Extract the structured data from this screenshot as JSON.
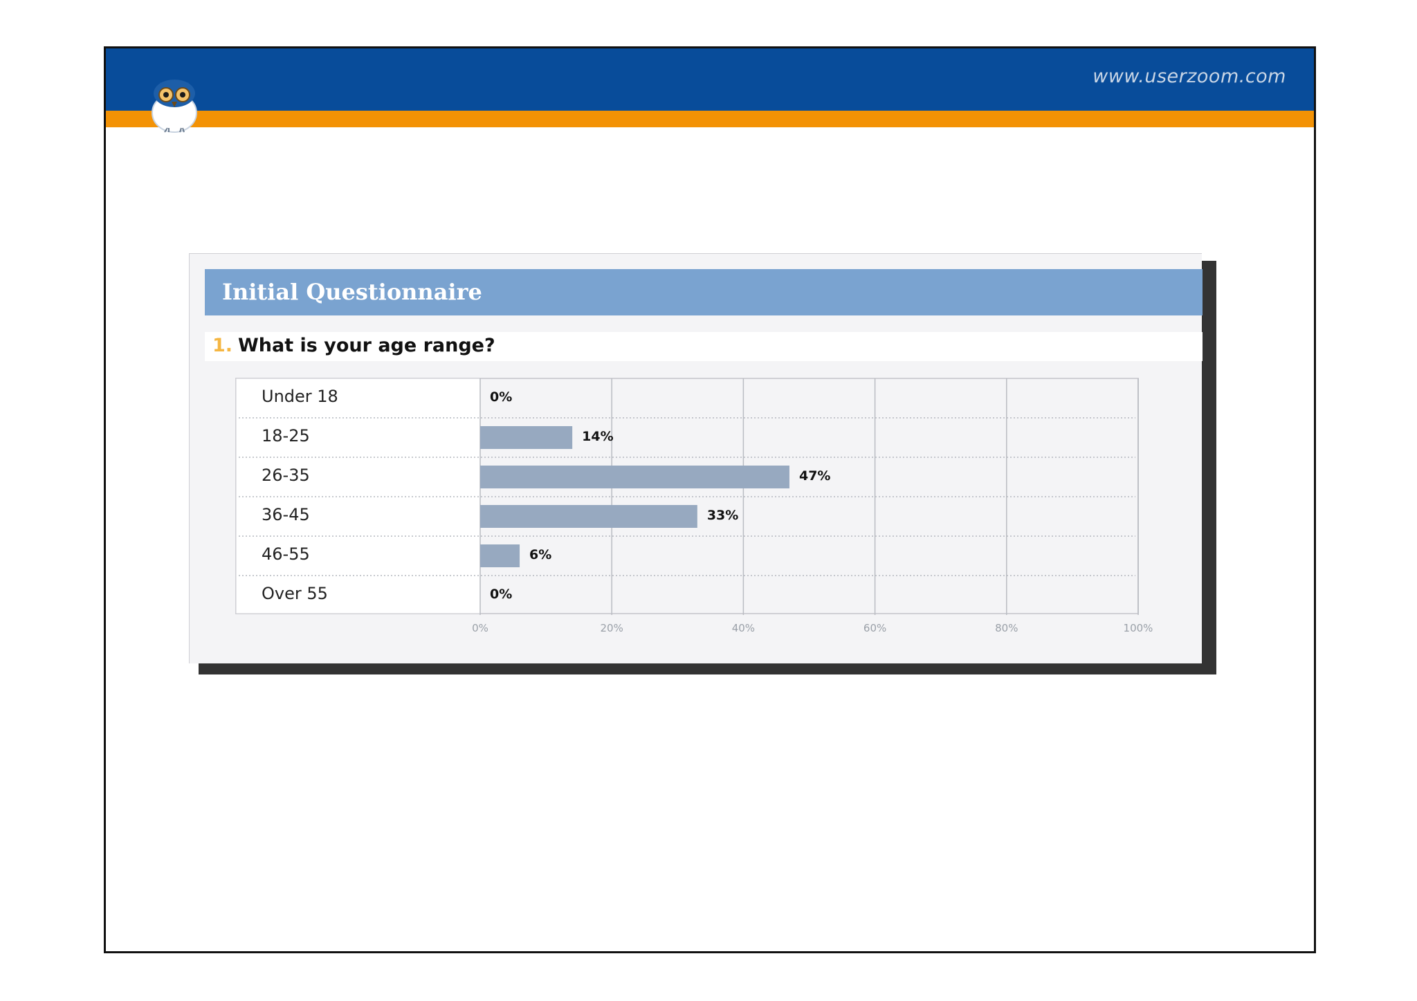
{
  "header": {
    "site_url": "www.userzoom.com",
    "blue_color": "#084c9a",
    "orange_color": "#f39205"
  },
  "panel": {
    "title": "Initial Questionnaire",
    "question_number": "1.",
    "question_text": "What is your age range?"
  },
  "chart_data": {
    "type": "bar",
    "orientation": "horizontal",
    "categories": [
      "Under 18",
      "18-25",
      "26-35",
      "36-45",
      "46-55",
      "Over 55"
    ],
    "values": [
      0,
      14,
      47,
      33,
      6,
      0
    ],
    "value_labels": [
      "0%",
      "14%",
      "47%",
      "33%",
      "6%",
      "0%"
    ],
    "x_ticks": [
      "0%",
      "20%",
      "40%",
      "60%",
      "80%",
      "100%"
    ],
    "xlim": [
      0,
      100
    ],
    "bar_color": "#97a9c0",
    "grid": true
  }
}
